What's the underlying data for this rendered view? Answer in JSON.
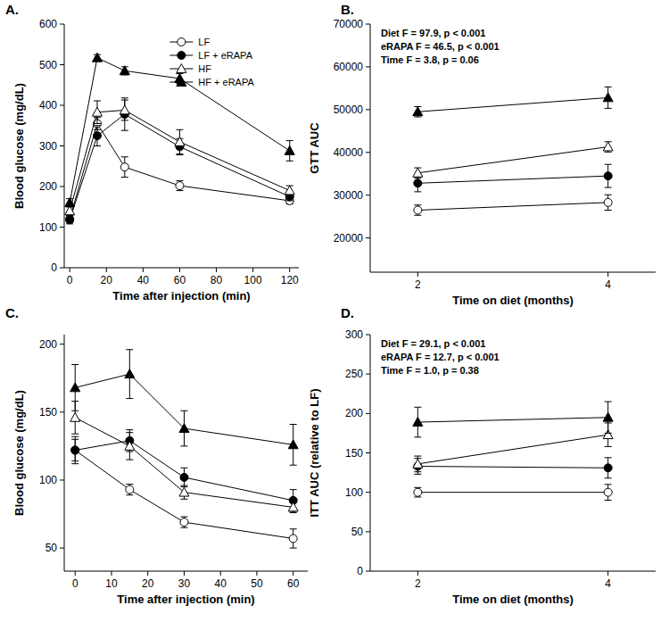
{
  "chart_data": [
    {
      "type": "line",
      "title": "A.",
      "x_label": "Time after injection (min)",
      "y_label": "Blood glucose (mg/dL)",
      "x": [
        0,
        15,
        30,
        60,
        120
      ],
      "xlim": [
        -3,
        125
      ],
      "xticks": [
        0,
        20,
        40,
        60,
        80,
        100,
        120
      ],
      "ylim": [
        0,
        600
      ],
      "yticks": [
        0,
        100,
        200,
        300,
        400,
        500,
        600
      ],
      "legend": "top",
      "series": [
        {
          "name": "LF",
          "color": "#000000",
          "marker": "circle-open",
          "line_style": "solid",
          "values": [
            120,
            355,
            248,
            202,
            165
          ],
          "errors": [
            8,
            15,
            25,
            12,
            8
          ]
        },
        {
          "name": "LF + eRAPA",
          "color": "#000000",
          "marker": "circle",
          "line_style": "solid",
          "values": [
            118,
            325,
            378,
            298,
            175
          ],
          "errors": [
            10,
            25,
            40,
            20,
            10
          ]
        },
        {
          "name": "HF",
          "color": "#000000",
          "marker": "triangle-open",
          "line_style": "solid",
          "values": [
            140,
            383,
            388,
            310,
            190
          ],
          "errors": [
            10,
            28,
            25,
            30,
            12
          ]
        },
        {
          "name": "HF + eRAPA",
          "color": "#000000",
          "marker": "triangle",
          "line_style": "solid",
          "values": [
            160,
            517,
            485,
            466,
            288
          ],
          "errors": [
            10,
            8,
            10,
            12,
            25
          ]
        }
      ]
    },
    {
      "type": "line",
      "title": "B.",
      "x_label": "Time on diet (months)",
      "y_label": "GTT AUC",
      "annotations": [
        "Diet F = 97.9, p < 0.001",
        "eRAPA F = 46.5, p < 0.001",
        "Time F = 3.8, p = 0.06"
      ],
      "x": [
        2,
        4
      ],
      "xlim": [
        1.5,
        4.5
      ],
      "xticks": [
        2,
        4
      ],
      "ylim": [
        12000,
        70000
      ],
      "yticks": [
        20000,
        30000,
        40000,
        50000,
        60000,
        70000
      ],
      "series": [
        {
          "color": "#000000",
          "marker": "circle-open",
          "line_style": "solid",
          "values": [
            26500,
            28300
          ],
          "errors": [
            1200,
            1800
          ]
        },
        {
          "color": "#000000",
          "marker": "circle",
          "line_style": "solid",
          "values": [
            32800,
            34500
          ],
          "errors": [
            2000,
            2700
          ]
        },
        {
          "color": "#000000",
          "marker": "triangle-open",
          "line_style": "solid",
          "values": [
            35200,
            41300
          ],
          "errors": [
            1200,
            1200
          ]
        },
        {
          "color": "#000000",
          "marker": "triangle",
          "line_style": "solid",
          "values": [
            49500,
            52800
          ],
          "errors": [
            1200,
            2500
          ]
        }
      ]
    },
    {
      "type": "line",
      "title": "C.",
      "x_label": "Time after injection (min)",
      "y_label": "Blood glucose (mg/dL)",
      "x": [
        0,
        15,
        30,
        60
      ],
      "xlim": [
        -3,
        64
      ],
      "xticks": [
        0,
        10,
        20,
        30,
        40,
        50,
        60
      ],
      "ylim": [
        33,
        207
      ],
      "yticks": [
        50,
        100,
        150,
        200
      ],
      "series": [
        {
          "color": "#000000",
          "marker": "circle-open",
          "line_style": "solid",
          "values": [
            122,
            93,
            69,
            57
          ],
          "errors": [
            10,
            4,
            4,
            7
          ]
        },
        {
          "color": "#000000",
          "marker": "circle",
          "line_style": "solid",
          "values": [
            122,
            129,
            102,
            85
          ],
          "errors": [
            8,
            8,
            7,
            8
          ]
        },
        {
          "color": "#000000",
          "marker": "triangle-open",
          "line_style": "solid",
          "values": [
            146,
            125,
            91,
            80
          ],
          "errors": [
            12,
            10,
            5,
            4
          ]
        },
        {
          "color": "#000000",
          "marker": "triangle",
          "line_style": "solid",
          "values": [
            168,
            178,
            138,
            126
          ],
          "errors": [
            17,
            18,
            13,
            15
          ]
        }
      ]
    },
    {
      "type": "line",
      "title": "D.",
      "x_label": "Time on diet (months)",
      "y_label": "ITT AUC (relative to LF)",
      "annotations": [
        "Diet F = 29.1, p < 0.001",
        "eRAPA F = 12.7, p < 0.001",
        "Time F = 1.0, p = 0.38"
      ],
      "x": [
        2,
        4
      ],
      "xlim": [
        1.5,
        4.5
      ],
      "xticks": [
        2,
        4
      ],
      "ylim": [
        0,
        300
      ],
      "yticks": [
        0,
        50,
        100,
        150,
        200,
        250,
        300
      ],
      "series": [
        {
          "color": "#000000",
          "marker": "circle-open",
          "line_style": "solid",
          "values": [
            100,
            100
          ],
          "errors": [
            6,
            10
          ]
        },
        {
          "color": "#000000",
          "marker": "circle",
          "line_style": "solid",
          "values": [
            133,
            131
          ],
          "errors": [
            10,
            13
          ]
        },
        {
          "color": "#000000",
          "marker": "triangle-open",
          "line_style": "solid",
          "values": [
            136,
            173
          ],
          "errors": [
            10,
            15
          ]
        },
        {
          "color": "#000000",
          "marker": "triangle",
          "line_style": "solid",
          "values": [
            189,
            195
          ],
          "errors": [
            19,
            20
          ]
        }
      ]
    }
  ]
}
